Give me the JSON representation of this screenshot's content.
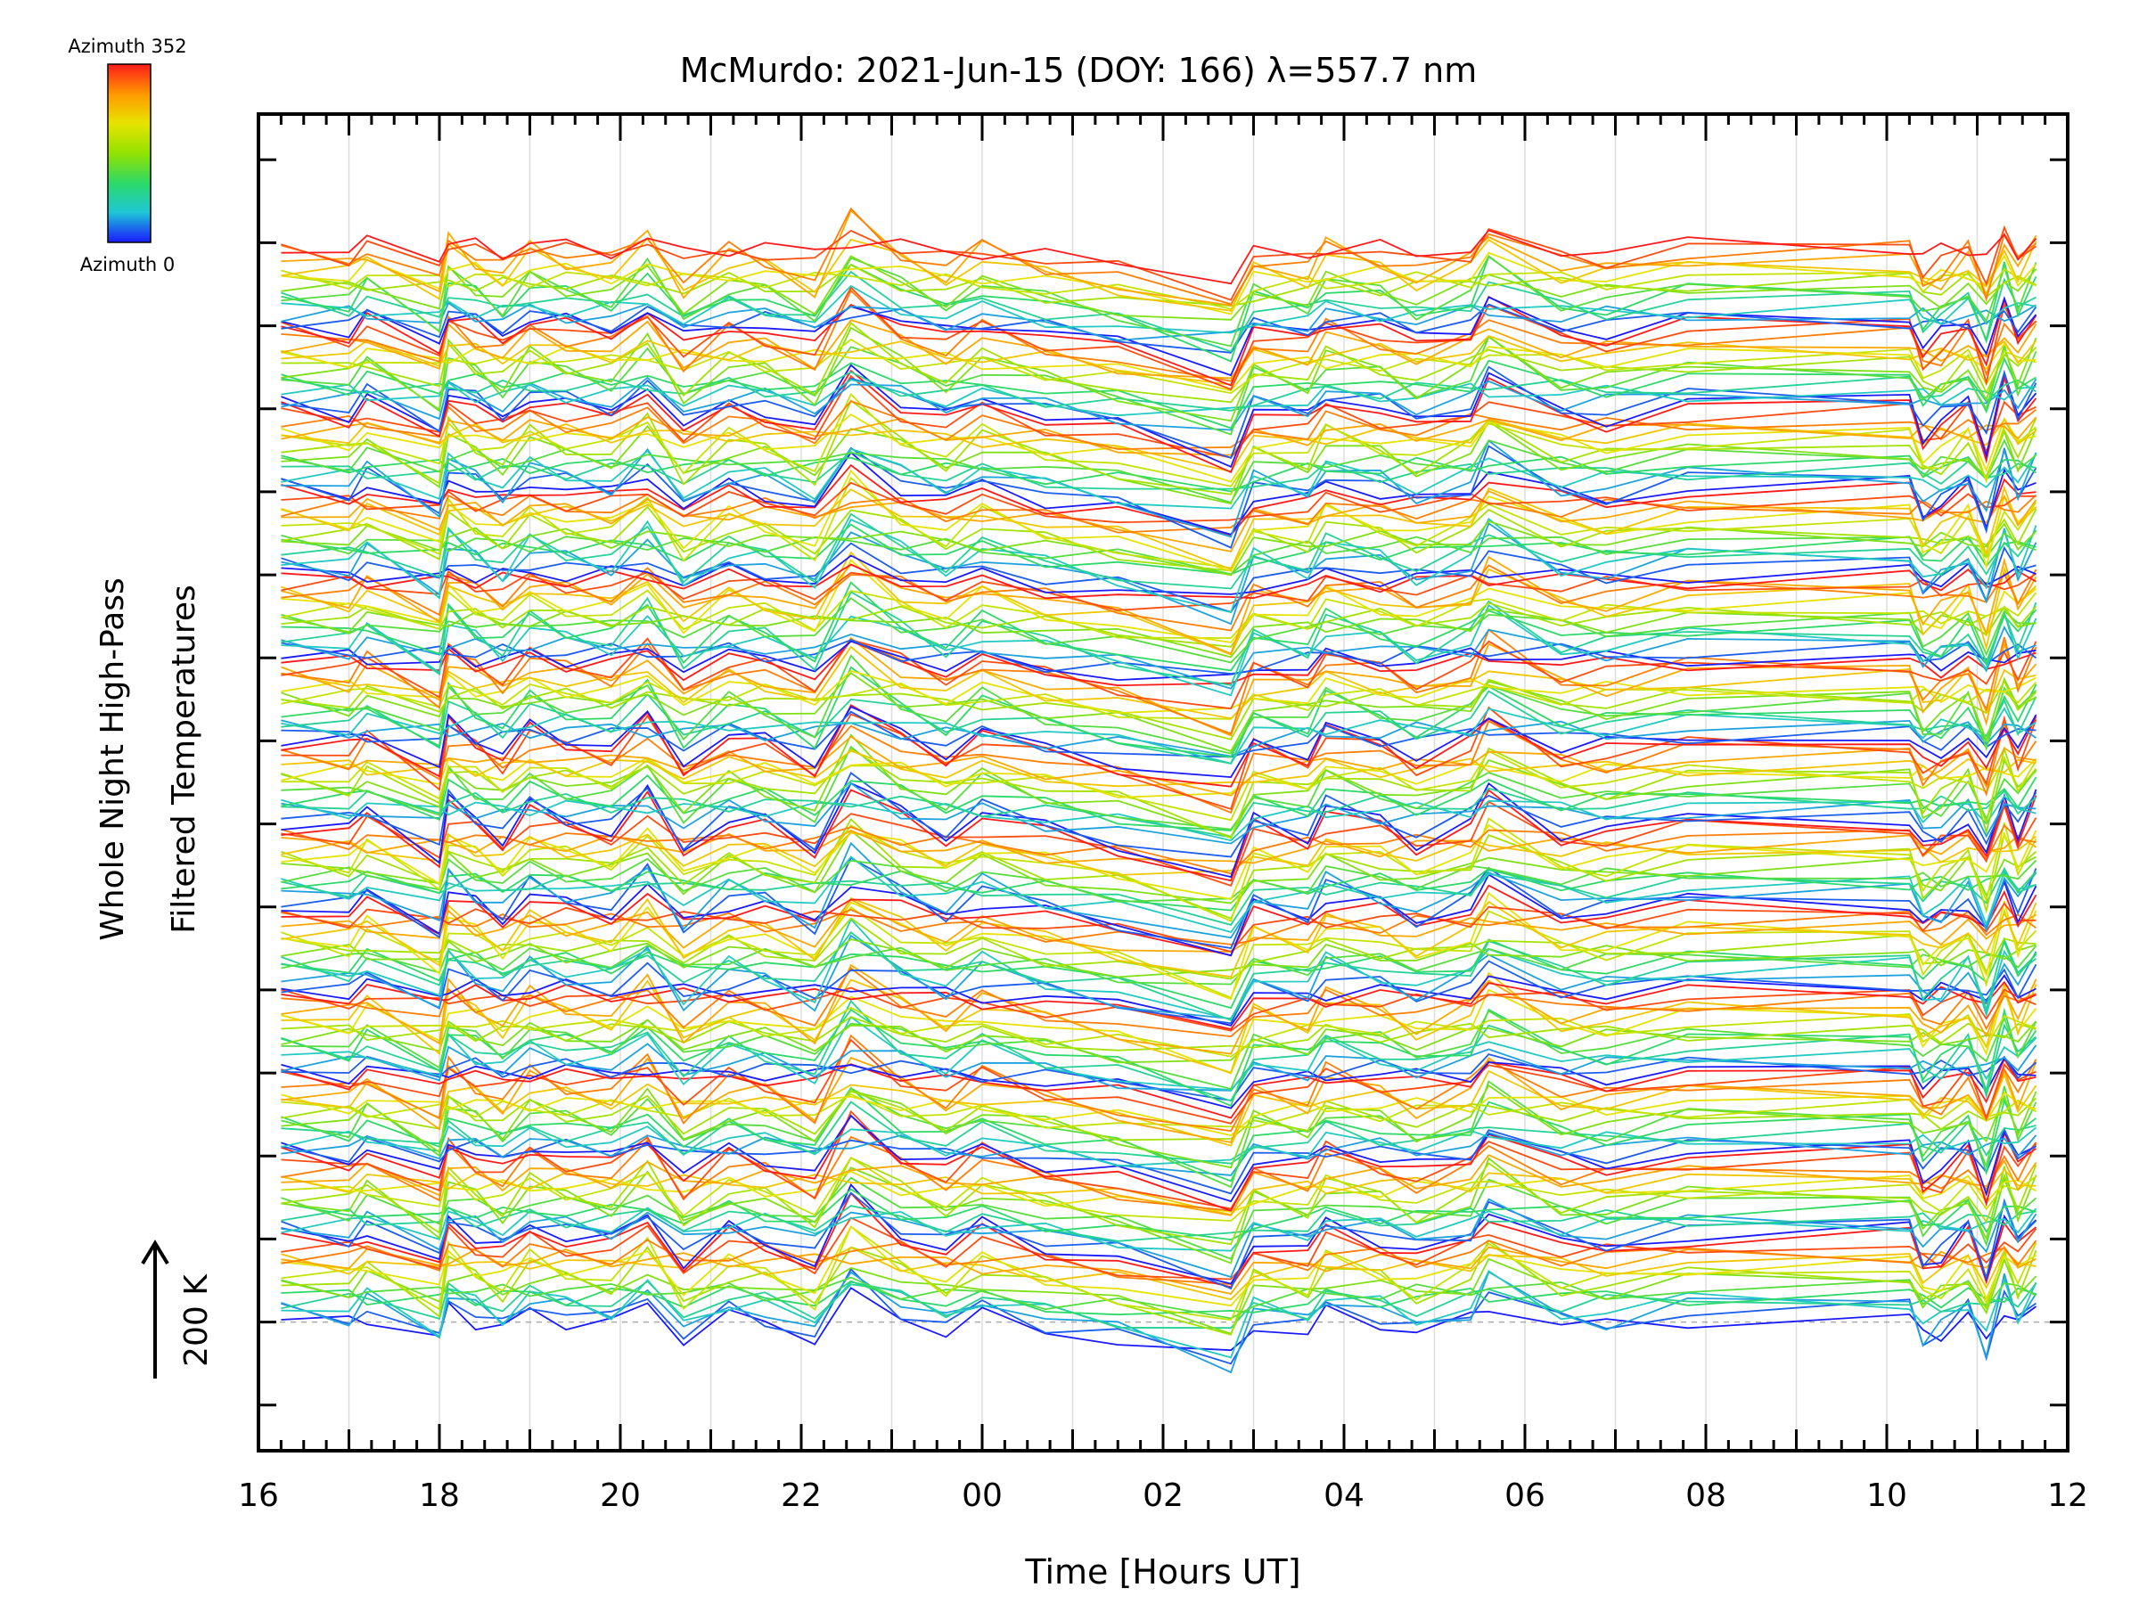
{
  "chart_data": {
    "type": "line",
    "title": "McMurdo: 2021-Jun-15 (DOY: 166) λ=557.7 nm",
    "xlabel": "Time [Hours UT]",
    "ylabel_lines": [
      "Whole Night High-Pass",
      "Filtered Temperatures"
    ],
    "scale_label": "200 K",
    "x_range_hours": [
      16,
      36
    ],
    "x_tick_labels": [
      "16",
      "18",
      "20",
      "22",
      "00",
      "02",
      "04",
      "06",
      "08",
      "10",
      "12"
    ],
    "y_range": [
      -1.55,
      14.55
    ],
    "stack_spacing": 1,
    "stacks": 13,
    "legend": {
      "top_label": "Azimuth 352",
      "bottom_label": "Azimuth 0",
      "colors": [
        "#ff1a1a",
        "#ff9a00",
        "#e8e300",
        "#93e200",
        "#2bd96a",
        "#1fc7d6",
        "#1a1aff"
      ]
    },
    "sample_times": [
      16.25,
      17.0,
      17.2,
      18.0,
      18.1,
      18.4,
      18.7,
      19.0,
      19.4,
      19.9,
      20.3,
      20.7,
      21.2,
      21.6,
      22.15,
      22.55,
      23.1,
      23.6,
      24.0,
      24.7,
      25.5,
      26.75,
      27.0,
      27.6,
      27.8,
      28.4,
      28.8,
      29.4,
      29.6,
      30.4,
      30.9,
      31.8,
      34.25,
      34.4,
      34.6,
      34.9,
      35.1,
      35.3,
      35.45,
      35.65
    ],
    "profile": [
      0.05,
      -0.05,
      0.15,
      -0.35,
      0.28,
      0.05,
      -0.15,
      0.2,
      0.05,
      -0.05,
      0.35,
      -0.3,
      0.1,
      0.0,
      -0.3,
      0.55,
      0.1,
      -0.08,
      0.25,
      0.05,
      -0.05,
      -0.38,
      0.15,
      -0.05,
      0.25,
      0.05,
      -0.2,
      0.02,
      0.42,
      -0.08,
      -0.1,
      0.08,
      0.1,
      -0.3,
      -0.2,
      0.1,
      -0.45,
      0.35,
      -0.1,
      0.3
    ],
    "trend": [
      0.0,
      0.0,
      0.0,
      0.0,
      0.0,
      0.0,
      0.0,
      0.0,
      0.0,
      0.0,
      0.0,
      0.0,
      0.0,
      0.0,
      0.0,
      0.0,
      0.0,
      -0.05,
      -0.08,
      -0.12,
      -0.18,
      -0.25,
      -0.12,
      -0.08,
      -0.05,
      -0.03,
      0.0,
      0.0,
      0.0,
      0.0,
      0.0,
      0.0,
      0.0,
      0.0,
      0.0,
      0.0,
      0.0,
      0.0,
      0.0,
      0.0
    ],
    "lines_per_stack": 16,
    "line_spacing": 0.0625
  }
}
